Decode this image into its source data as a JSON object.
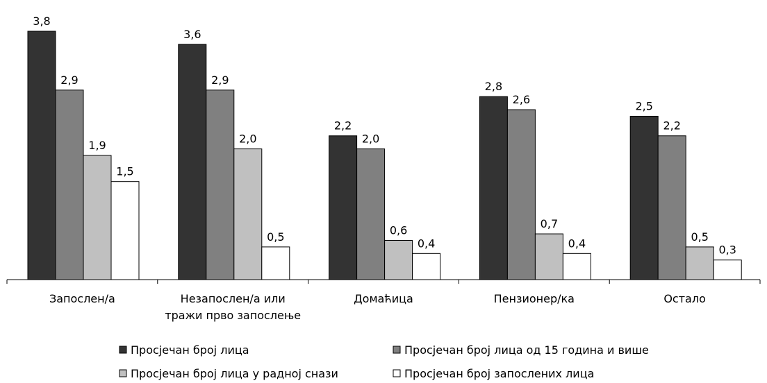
{
  "chart_data": {
    "type": "bar",
    "categories": [
      [
        "Запослен/а"
      ],
      [
        "Незапослен/а или",
        "тражи прво запослење"
      ],
      [
        "Домаћица"
      ],
      [
        "Пензионер/ка"
      ],
      [
        "Остало"
      ]
    ],
    "series": [
      {
        "name": "Просјечан број лица",
        "color": "#333333",
        "values": [
          3.8,
          3.6,
          2.2,
          2.8,
          2.5
        ],
        "labels": [
          "3,8",
          "3,6",
          "2,2",
          "2,8",
          "2,5"
        ]
      },
      {
        "name": "Просјечан број лица од 15 година и више",
        "color": "#808080",
        "values": [
          2.9,
          2.9,
          2.0,
          2.6,
          2.2
        ],
        "labels": [
          "2,9",
          "2,9",
          "2,0",
          "2,6",
          "2,2"
        ]
      },
      {
        "name": "Просјечан број лица у радној снази",
        "color": "#c0c0c0",
        "values": [
          1.9,
          2.0,
          0.6,
          0.7,
          0.5
        ],
        "labels": [
          "1,9",
          "2,0",
          "0,6",
          "0,7",
          "0,5"
        ]
      },
      {
        "name": "Просјечан број запослених лица",
        "color": "#ffffff",
        "values": [
          1.5,
          0.5,
          0.4,
          0.4,
          0.3
        ],
        "labels": [
          "1,5",
          "0,5",
          "0,4",
          "0,4",
          "0,3"
        ]
      }
    ],
    "ylim": [
      0,
      3.8
    ],
    "grid": false,
    "legend": "bottom"
  }
}
